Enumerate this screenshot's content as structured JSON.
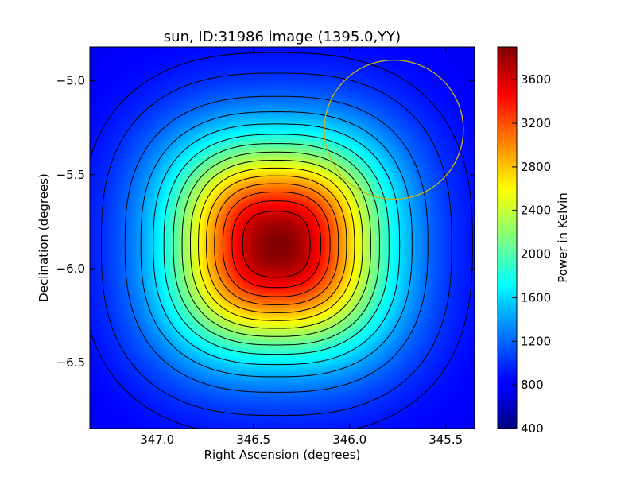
{
  "chart_data": {
    "type": "heatmap",
    "title": "sun, ID:31986 image (1395.0,YY)",
    "xlabel": "Right Ascension (degrees)",
    "ylabel": "Declination (degrees)",
    "colorbar_label": "Power in Kelvin",
    "xlim": [
      347.35,
      345.35
    ],
    "ylim": [
      -6.85,
      -4.82
    ],
    "x_ticks": [
      {
        "value": 347.0,
        "label": "347.0"
      },
      {
        "value": 346.5,
        "label": "346.5"
      },
      {
        "value": 346.0,
        "label": "346.0"
      },
      {
        "value": 345.5,
        "label": "345.5"
      }
    ],
    "y_ticks": [
      {
        "value": -5.0,
        "label": "−5.0"
      },
      {
        "value": -5.5,
        "label": "−5.5"
      },
      {
        "value": -6.0,
        "label": "−6.0"
      },
      {
        "value": -6.5,
        "label": "−6.5"
      }
    ],
    "colorbar_range": [
      400,
      3900
    ],
    "colorbar_ticks": [
      {
        "value": 400,
        "label": "400"
      },
      {
        "value": 800,
        "label": "800"
      },
      {
        "value": 1200,
        "label": "1200"
      },
      {
        "value": 1600,
        "label": "1600"
      },
      {
        "value": 2000,
        "label": "2000"
      },
      {
        "value": 2400,
        "label": "2400"
      },
      {
        "value": 2800,
        "label": "2800"
      },
      {
        "value": 3200,
        "label": "3200"
      },
      {
        "value": 3600,
        "label": "3600"
      }
    ],
    "colormap": "jet",
    "peak": {
      "ra": 346.38,
      "dec": -5.87,
      "value": 3900
    },
    "background_level": 800,
    "contour_levels": [
      900,
      1000,
      1200,
      1400,
      1600,
      1800,
      2000,
      2200,
      2400,
      2600,
      2800,
      3000,
      3200,
      3400,
      3600
    ],
    "circle": {
      "center_ra": 345.77,
      "center_dec": -5.26,
      "radius_deg": 0.37,
      "color": "#c8b41e"
    },
    "colors": {
      "contour": "#000000",
      "circle": "#c8b41e"
    }
  }
}
